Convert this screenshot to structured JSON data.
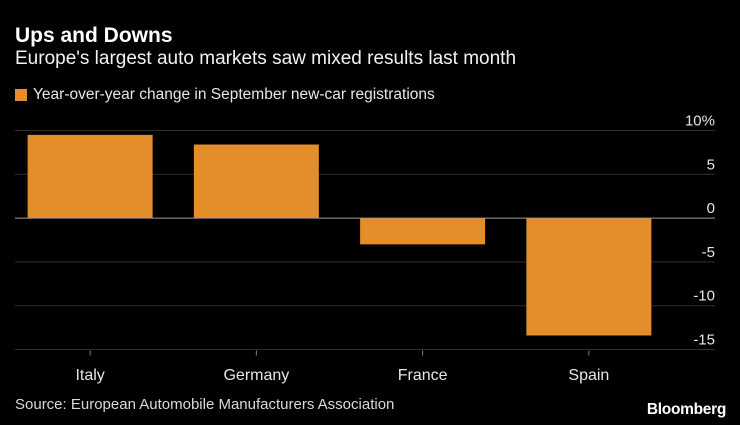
{
  "header": {
    "title": "Ups and Downs",
    "subtitle": "Europe's largest auto markets saw mixed results last month"
  },
  "footer": {
    "source": "Source: European Automobile Manufacturers Association",
    "logo": "Bloomberg"
  },
  "colors": {
    "bar": "#E38D2B",
    "background": "#000000",
    "gridline": "#2e2e2e",
    "axis": "#7f7f7f"
  },
  "chart_data": {
    "type": "bar",
    "categories": [
      "Italy",
      "Germany",
      "France",
      "Spain"
    ],
    "series": [
      {
        "name": "Year-over-year change in September new-car registrations",
        "values": [
          9.5,
          8.4,
          -3.0,
          -13.4
        ]
      }
    ],
    "ylim": [
      -15,
      10
    ],
    "yticks": [
      10,
      5,
      0,
      -5,
      -10,
      -15
    ],
    "ytick_labels": [
      "10%",
      "5",
      "0",
      "-5",
      "-10",
      "-15"
    ],
    "xlabel": "",
    "ylabel": "",
    "grid": true,
    "legend_position": "top-left"
  }
}
